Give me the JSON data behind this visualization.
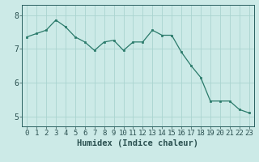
{
  "x": [
    0,
    1,
    2,
    3,
    4,
    5,
    6,
    7,
    8,
    9,
    10,
    11,
    12,
    13,
    14,
    15,
    16,
    17,
    18,
    19,
    20,
    21,
    22,
    23
  ],
  "y": [
    7.35,
    7.45,
    7.55,
    7.85,
    7.65,
    7.35,
    7.2,
    6.95,
    7.2,
    7.25,
    6.95,
    7.2,
    7.2,
    7.55,
    7.4,
    7.4,
    6.9,
    6.5,
    6.15,
    5.45,
    5.45,
    5.45,
    5.2,
    5.1
  ],
  "line_color": "#2a7a6a",
  "marker_color": "#2a7a6a",
  "bg_color": "#cceae7",
  "grid_color": "#aad4d0",
  "axis_color": "#2a6060",
  "xlabel": "Humidex (Indice chaleur)",
  "xlim": [
    -0.5,
    23.5
  ],
  "ylim": [
    4.7,
    8.3
  ],
  "yticks": [
    5,
    6,
    7,
    8
  ],
  "xticks": [
    0,
    1,
    2,
    3,
    4,
    5,
    6,
    7,
    8,
    9,
    10,
    11,
    12,
    13,
    14,
    15,
    16,
    17,
    18,
    19,
    20,
    21,
    22,
    23
  ],
  "font_color": "#2a5050",
  "xlabel_fontsize": 7.5,
  "tick_fontsize": 6.5
}
